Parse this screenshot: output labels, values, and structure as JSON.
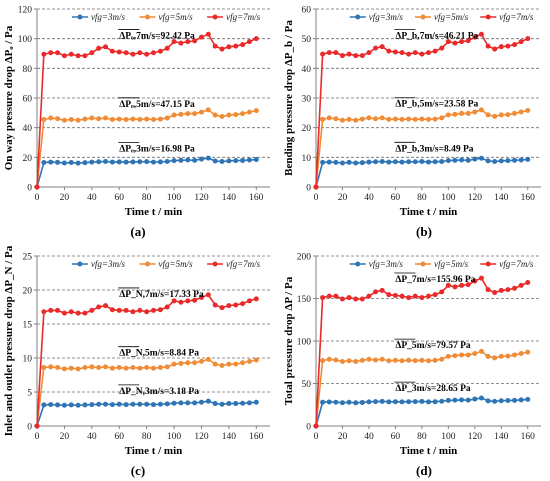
{
  "colors": {
    "s3": "#2e75b6",
    "s5": "#f08c36",
    "s7": "#ea2a2a",
    "grid": "#6e6e6e",
    "axis": "#808080"
  },
  "chart_data": [
    {
      "type": "line",
      "panel_label": "(a)",
      "ylabel": "On way pressure drop ΔPₒ / Pa",
      "xlabel": "Time t / min",
      "xlim": [
        0,
        170
      ],
      "xticks": [
        0,
        20,
        40,
        60,
        80,
        100,
        120,
        140,
        160
      ],
      "ylim": [
        0,
        120
      ],
      "yticks": [
        0,
        20,
        40,
        60,
        80,
        100,
        120
      ],
      "grid": "horizontal-dashed",
      "legend": {
        "position": "top",
        "entries": [
          "vfg=3m/s",
          "vfg=5m/s",
          "vfg=7m/s"
        ]
      },
      "annotations": [
        {
          "text": "ΔPₒ,7m/s=92.42 Pa",
          "series": 2
        },
        {
          "text": "ΔPₒ,5m/s=47.15 Pa",
          "series": 1
        },
        {
          "text": "ΔPₒ,3m/s=16.98 Pa",
          "series": 0
        }
      ],
      "x": [
        0,
        5,
        10,
        15,
        20,
        25,
        30,
        35,
        40,
        45,
        50,
        55,
        60,
        65,
        70,
        75,
        80,
        85,
        90,
        95,
        100,
        105,
        110,
        115,
        120,
        125,
        130,
        135,
        140,
        145,
        150,
        155,
        160
      ],
      "series": [
        {
          "name": "vfg=3m/s",
          "values": [
            0,
            16.5,
            16.8,
            16.6,
            16.2,
            16.5,
            16.1,
            16.4,
            16.8,
            17.0,
            17.2,
            16.8,
            16.9,
            16.8,
            16.9,
            17.0,
            17.1,
            16.8,
            16.9,
            17.2,
            17.8,
            18.0,
            18.2,
            18.0,
            18.8,
            19.5,
            17.5,
            17.2,
            17.6,
            17.8,
            17.9,
            18.2,
            18.5
          ]
        },
        {
          "name": "vfg=5m/s",
          "values": [
            0,
            45.5,
            46.5,
            46.0,
            45.0,
            45.5,
            45.0,
            45.8,
            46.5,
            46.0,
            46.5,
            45.5,
            45.8,
            45.5,
            45.8,
            45.6,
            45.8,
            45.5,
            45.8,
            46.5,
            48.5,
            49.0,
            49.5,
            49.5,
            50.5,
            52.0,
            48.5,
            47.5,
            48.5,
            48.8,
            49.5,
            50.5,
            51.5
          ]
        },
        {
          "name": "vfg=7m/s",
          "values": [
            0,
            89.5,
            90.5,
            90.5,
            88.5,
            89.5,
            88.5,
            88.5,
            90.5,
            93.5,
            94.5,
            91.5,
            91.0,
            90.5,
            89.5,
            90.5,
            89.5,
            90.5,
            91.5,
            93.5,
            98.0,
            97.0,
            98.0,
            98.5,
            101.0,
            103.0,
            95.0,
            93.0,
            94.5,
            95.0,
            96.0,
            98.0,
            100.0
          ]
        }
      ]
    },
    {
      "type": "line",
      "panel_label": "(b)",
      "ylabel": "Bending pressure drop ΔP_b / Pa",
      "xlabel": "Time t / min",
      "xlim": [
        0,
        170
      ],
      "xticks": [
        0,
        20,
        40,
        60,
        80,
        100,
        120,
        140,
        160
      ],
      "ylim": [
        0,
        60
      ],
      "yticks": [
        0,
        10,
        20,
        30,
        40,
        50,
        60
      ],
      "grid": "horizontal-dashed",
      "legend": {
        "position": "top",
        "entries": [
          "vfg=3m/s",
          "vfg=5m/s",
          "vfg=7m/s"
        ]
      },
      "annotations": [
        {
          "text": "ΔP_b,7m/s=46.21 Pa",
          "series": 2
        },
        {
          "text": "ΔP_b,5m/s=23.58 Pa",
          "series": 1
        },
        {
          "text": "ΔP_b,3m/s=8.49 Pa",
          "series": 0
        }
      ],
      "x": [
        0,
        5,
        10,
        15,
        20,
        25,
        30,
        35,
        40,
        45,
        50,
        55,
        60,
        65,
        70,
        75,
        80,
        85,
        90,
        95,
        100,
        105,
        110,
        115,
        120,
        125,
        130,
        135,
        140,
        145,
        150,
        155,
        160
      ],
      "series": [
        {
          "name": "vfg=3m/s",
          "values": [
            0,
            8.3,
            8.4,
            8.3,
            8.1,
            8.3,
            8.1,
            8.2,
            8.4,
            8.5,
            8.6,
            8.4,
            8.5,
            8.4,
            8.5,
            8.5,
            8.6,
            8.4,
            8.5,
            8.6,
            8.9,
            9.0,
            9.1,
            9.0,
            9.4,
            9.7,
            8.8,
            8.6,
            8.8,
            8.9,
            9.0,
            9.1,
            9.3
          ]
        },
        {
          "name": "vfg=5m/s",
          "values": [
            0,
            22.8,
            23.3,
            23.0,
            22.5,
            22.8,
            22.5,
            22.9,
            23.3,
            23.0,
            23.3,
            22.8,
            22.9,
            22.8,
            22.9,
            22.8,
            22.9,
            22.8,
            22.9,
            23.3,
            24.3,
            24.5,
            24.8,
            24.8,
            25.3,
            26.0,
            24.3,
            23.8,
            24.3,
            24.4,
            24.8,
            25.3,
            25.8
          ]
        },
        {
          "name": "vfg=7m/s",
          "values": [
            0,
            44.8,
            45.3,
            45.3,
            44.3,
            44.8,
            44.3,
            44.3,
            45.3,
            46.8,
            47.3,
            45.8,
            45.5,
            45.3,
            44.8,
            45.3,
            44.8,
            45.3,
            45.8,
            46.8,
            49.0,
            48.5,
            49.0,
            49.3,
            50.5,
            51.5,
            47.5,
            46.5,
            47.3,
            47.5,
            48.0,
            49.0,
            50.0
          ]
        }
      ]
    },
    {
      "type": "line",
      "panel_label": "(c)",
      "ylabel": "Inlet and outlet pressure drop ΔP_N / Pa",
      "xlabel": "Time t / min",
      "xlim": [
        0,
        170
      ],
      "xticks": [
        0,
        20,
        40,
        60,
        80,
        100,
        120,
        140,
        160
      ],
      "ylim": [
        0,
        25
      ],
      "yticks": [
        0,
        5,
        10,
        15,
        20,
        25
      ],
      "grid": "horizontal-dashed",
      "legend": {
        "position": "top",
        "entries": [
          "vfg=3m/s",
          "vfg=5m/s",
          "vfg=7m/s"
        ]
      },
      "annotations": [
        {
          "text": "ΔP_N,7m/s=17.33 Pa",
          "series": 2
        },
        {
          "text": "ΔP_N,5m/s=8.84 Pa",
          "series": 1
        },
        {
          "text": "ΔP_N,3m/s=3.18 Pa",
          "series": 0
        }
      ],
      "x": [
        0,
        5,
        10,
        15,
        20,
        25,
        30,
        35,
        40,
        45,
        50,
        55,
        60,
        65,
        70,
        75,
        80,
        85,
        90,
        95,
        100,
        105,
        110,
        115,
        120,
        125,
        130,
        135,
        140,
        145,
        150,
        155,
        160
      ],
      "series": [
        {
          "name": "vfg=3m/s",
          "values": [
            0,
            3.1,
            3.15,
            3.1,
            3.05,
            3.1,
            3.05,
            3.1,
            3.15,
            3.2,
            3.2,
            3.15,
            3.2,
            3.15,
            3.2,
            3.2,
            3.2,
            3.15,
            3.2,
            3.25,
            3.35,
            3.4,
            3.4,
            3.4,
            3.5,
            3.65,
            3.3,
            3.2,
            3.3,
            3.3,
            3.35,
            3.4,
            3.5
          ]
        },
        {
          "name": "vfg=5m/s",
          "values": [
            0,
            8.6,
            8.7,
            8.6,
            8.4,
            8.5,
            8.4,
            8.6,
            8.7,
            8.6,
            8.7,
            8.5,
            8.6,
            8.5,
            8.6,
            8.5,
            8.6,
            8.5,
            8.6,
            8.7,
            9.1,
            9.2,
            9.3,
            9.3,
            9.5,
            9.8,
            9.1,
            8.9,
            9.1,
            9.1,
            9.3,
            9.5,
            9.7
          ]
        },
        {
          "name": "vfg=7m/s",
          "values": [
            0,
            16.8,
            17.0,
            17.0,
            16.6,
            16.8,
            16.6,
            16.6,
            17.0,
            17.5,
            17.7,
            17.1,
            17.0,
            17.0,
            16.8,
            17.0,
            16.8,
            17.0,
            17.1,
            17.5,
            18.4,
            18.2,
            18.4,
            18.5,
            18.9,
            19.3,
            17.8,
            17.4,
            17.7,
            17.8,
            18.0,
            18.4,
            18.7
          ]
        }
      ]
    },
    {
      "type": "line",
      "panel_label": "(d)",
      "ylabel": "Total pressure drop ΔP / Pa",
      "xlabel": "Time t / min",
      "xlim": [
        0,
        170
      ],
      "xticks": [
        0,
        20,
        40,
        60,
        80,
        100,
        120,
        140,
        160
      ],
      "ylim": [
        0,
        200
      ],
      "yticks": [
        0,
        50,
        100,
        150,
        200
      ],
      "grid": "horizontal-dashed",
      "legend": {
        "position": "top",
        "entries": [
          "vfg=3m/s",
          "vfg=5m/s",
          "vfg=7m/s"
        ]
      },
      "annotations": [
        {
          "text": "ΔP_7m/s=155.96 Pa",
          "series": 2
        },
        {
          "text": "ΔP_5m/s=79.57 Pa",
          "series": 1
        },
        {
          "text": "ΔP_3m/s=28.65 Pa",
          "series": 0
        }
      ],
      "x": [
        0,
        5,
        10,
        15,
        20,
        25,
        30,
        35,
        40,
        45,
        50,
        55,
        60,
        65,
        70,
        75,
        80,
        85,
        90,
        95,
        100,
        105,
        110,
        115,
        120,
        125,
        130,
        135,
        140,
        145,
        150,
        155,
        160
      ],
      "series": [
        {
          "name": "vfg=3m/s",
          "values": [
            0,
            28.0,
            28.3,
            28.0,
            27.4,
            27.9,
            27.3,
            27.7,
            28.4,
            28.7,
            29.0,
            28.4,
            28.6,
            28.4,
            28.6,
            28.7,
            28.9,
            28.4,
            28.6,
            29.1,
            30.1,
            30.4,
            30.7,
            30.4,
            31.7,
            32.9,
            29.6,
            29.0,
            29.7,
            30.0,
            30.2,
            30.7,
            31.3
          ]
        },
        {
          "name": "vfg=5m/s",
          "values": [
            0,
            76.9,
            78.5,
            77.6,
            75.9,
            76.8,
            75.9,
            77.3,
            78.5,
            77.6,
            78.5,
            76.8,
            77.3,
            76.8,
            77.3,
            76.9,
            77.3,
            76.8,
            77.3,
            78.5,
            81.9,
            82.7,
            83.6,
            83.6,
            85.3,
            87.8,
            81.9,
            80.2,
            81.9,
            82.3,
            83.6,
            85.3,
            86.9
          ]
        },
        {
          "name": "vfg=7m/s",
          "values": [
            0,
            151.1,
            152.8,
            152.8,
            149.4,
            151.1,
            149.4,
            149.4,
            152.8,
            157.8,
            159.5,
            154.5,
            153.6,
            152.8,
            151.1,
            152.8,
            151.1,
            152.8,
            154.5,
            157.8,
            165.4,
            163.7,
            165.4,
            166.3,
            170.5,
            173.9,
            160.4,
            157.0,
            159.5,
            160.4,
            162.0,
            165.4,
            168.8
          ]
        }
      ]
    }
  ]
}
